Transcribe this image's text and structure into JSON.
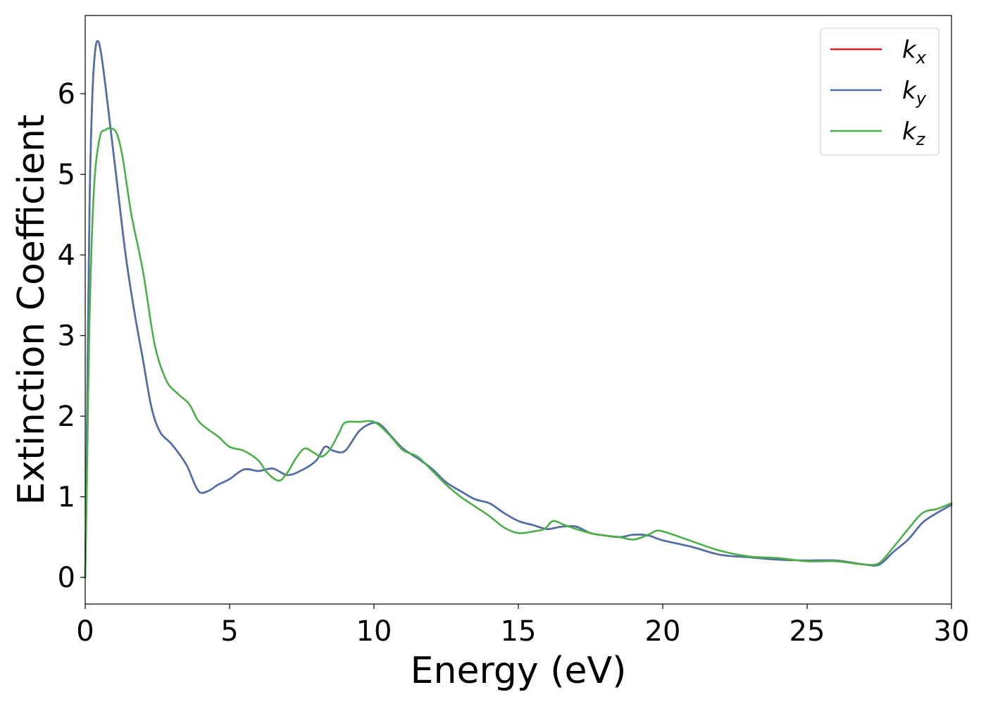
{
  "chart_data": {
    "type": "line",
    "xlabel": "Energy (eV)",
    "ylabel": "Extinction Coefficient",
    "xlim": [
      0,
      30
    ],
    "ylim": [
      -0.33,
      6.97
    ],
    "xticks": [
      0,
      5,
      10,
      15,
      20,
      25,
      30
    ],
    "yticks": [
      0,
      1,
      2,
      3,
      4,
      5,
      6
    ],
    "grid": false,
    "legend_position": "top-right",
    "series": [
      {
        "name": "kx",
        "label_base": "k",
        "label_sub": "x",
        "color": "#e41a1c",
        "x": [
          0,
          0.05,
          0.15,
          0.25,
          0.35,
          0.45,
          0.55,
          0.7,
          0.9,
          1.1,
          1.4,
          1.7,
          2.0,
          2.3,
          2.6,
          3.0,
          3.5,
          3.8,
          4.0,
          4.3,
          4.6,
          5.0,
          5.5,
          6.0,
          6.5,
          7.0,
          7.5,
          8.0,
          8.3,
          8.6,
          9.0,
          9.5,
          10.0,
          10.3,
          10.6,
          11.0,
          11.5,
          12.0,
          12.5,
          13.0,
          13.5,
          14.0,
          14.5,
          15.0,
          15.5,
          16.0,
          16.5,
          17.0,
          17.5,
          18.0,
          18.5,
          19.0,
          19.5,
          20.0,
          21.0,
          22.0,
          23.0,
          24.0,
          25.0,
          26.0,
          27.0,
          27.5,
          28.0,
          28.5,
          29.0,
          29.5,
          30.0
        ],
        "y": [
          0.0,
          1.5,
          4.6,
          6.0,
          6.55,
          6.65,
          6.5,
          6.1,
          5.5,
          4.9,
          4.0,
          3.3,
          2.7,
          2.1,
          1.8,
          1.65,
          1.4,
          1.15,
          1.05,
          1.08,
          1.15,
          1.22,
          1.34,
          1.32,
          1.35,
          1.27,
          1.33,
          1.45,
          1.62,
          1.57,
          1.57,
          1.82,
          1.92,
          1.87,
          1.75,
          1.6,
          1.48,
          1.35,
          1.18,
          1.07,
          0.97,
          0.92,
          0.8,
          0.7,
          0.65,
          0.6,
          0.63,
          0.63,
          0.55,
          0.52,
          0.5,
          0.53,
          0.52,
          0.46,
          0.38,
          0.28,
          0.25,
          0.22,
          0.21,
          0.21,
          0.16,
          0.16,
          0.32,
          0.47,
          0.68,
          0.8,
          0.9
        ]
      },
      {
        "name": "ky",
        "label_base": "k",
        "label_sub": "y",
        "color": "#4a73ab",
        "x": [
          0,
          0.05,
          0.15,
          0.25,
          0.35,
          0.45,
          0.55,
          0.7,
          0.9,
          1.1,
          1.4,
          1.7,
          2.0,
          2.3,
          2.6,
          3.0,
          3.5,
          3.8,
          4.0,
          4.3,
          4.6,
          5.0,
          5.5,
          6.0,
          6.5,
          7.0,
          7.5,
          8.0,
          8.3,
          8.6,
          9.0,
          9.5,
          10.0,
          10.3,
          10.6,
          11.0,
          11.5,
          12.0,
          12.5,
          13.0,
          13.5,
          14.0,
          14.5,
          15.0,
          15.5,
          16.0,
          16.5,
          17.0,
          17.5,
          18.0,
          18.5,
          19.0,
          19.5,
          20.0,
          21.0,
          22.0,
          23.0,
          24.0,
          25.0,
          26.0,
          27.0,
          27.5,
          28.0,
          28.5,
          29.0,
          29.5,
          30.0
        ],
        "y": [
          0.0,
          1.5,
          4.6,
          6.0,
          6.55,
          6.65,
          6.5,
          6.1,
          5.5,
          4.9,
          4.0,
          3.3,
          2.7,
          2.1,
          1.8,
          1.65,
          1.4,
          1.15,
          1.05,
          1.08,
          1.15,
          1.22,
          1.34,
          1.32,
          1.35,
          1.27,
          1.33,
          1.45,
          1.62,
          1.57,
          1.57,
          1.82,
          1.92,
          1.87,
          1.75,
          1.6,
          1.48,
          1.35,
          1.18,
          1.07,
          0.97,
          0.92,
          0.8,
          0.7,
          0.65,
          0.6,
          0.63,
          0.63,
          0.55,
          0.52,
          0.5,
          0.53,
          0.52,
          0.46,
          0.38,
          0.28,
          0.25,
          0.22,
          0.21,
          0.21,
          0.16,
          0.16,
          0.32,
          0.47,
          0.68,
          0.8,
          0.9
        ]
      },
      {
        "name": "kz",
        "label_base": "k",
        "label_sub": "z",
        "color": "#4daf4a",
        "x": [
          0,
          0.05,
          0.15,
          0.3,
          0.5,
          0.7,
          0.9,
          1.1,
          1.3,
          1.6,
          2.0,
          2.4,
          2.8,
          3.2,
          3.6,
          3.9,
          4.2,
          4.6,
          5.0,
          5.5,
          6.0,
          6.3,
          6.7,
          7.0,
          7.3,
          7.6,
          7.9,
          8.2,
          8.5,
          8.8,
          9.0,
          9.5,
          10.0,
          10.5,
          11.0,
          11.5,
          12.0,
          12.5,
          13.0,
          13.5,
          14.0,
          14.5,
          15.0,
          15.5,
          15.9,
          16.2,
          16.6,
          17.0,
          17.5,
          18.0,
          18.5,
          19.0,
          19.5,
          19.8,
          20.2,
          21.0,
          22.0,
          23.0,
          24.0,
          25.0,
          26.0,
          27.0,
          27.5,
          28.0,
          28.5,
          29.0,
          29.5,
          30.0
        ],
        "y": [
          0.0,
          1.0,
          3.2,
          4.8,
          5.45,
          5.55,
          5.57,
          5.5,
          5.2,
          4.5,
          3.8,
          2.9,
          2.45,
          2.28,
          2.15,
          1.95,
          1.85,
          1.75,
          1.62,
          1.57,
          1.45,
          1.3,
          1.2,
          1.3,
          1.48,
          1.6,
          1.55,
          1.5,
          1.6,
          1.8,
          1.92,
          1.93,
          1.93,
          1.78,
          1.58,
          1.5,
          1.33,
          1.15,
          1.0,
          0.88,
          0.76,
          0.62,
          0.55,
          0.57,
          0.6,
          0.7,
          0.65,
          0.6,
          0.55,
          0.52,
          0.5,
          0.47,
          0.53,
          0.58,
          0.55,
          0.45,
          0.33,
          0.26,
          0.24,
          0.2,
          0.2,
          0.16,
          0.18,
          0.38,
          0.6,
          0.8,
          0.85,
          0.92
        ]
      }
    ]
  }
}
